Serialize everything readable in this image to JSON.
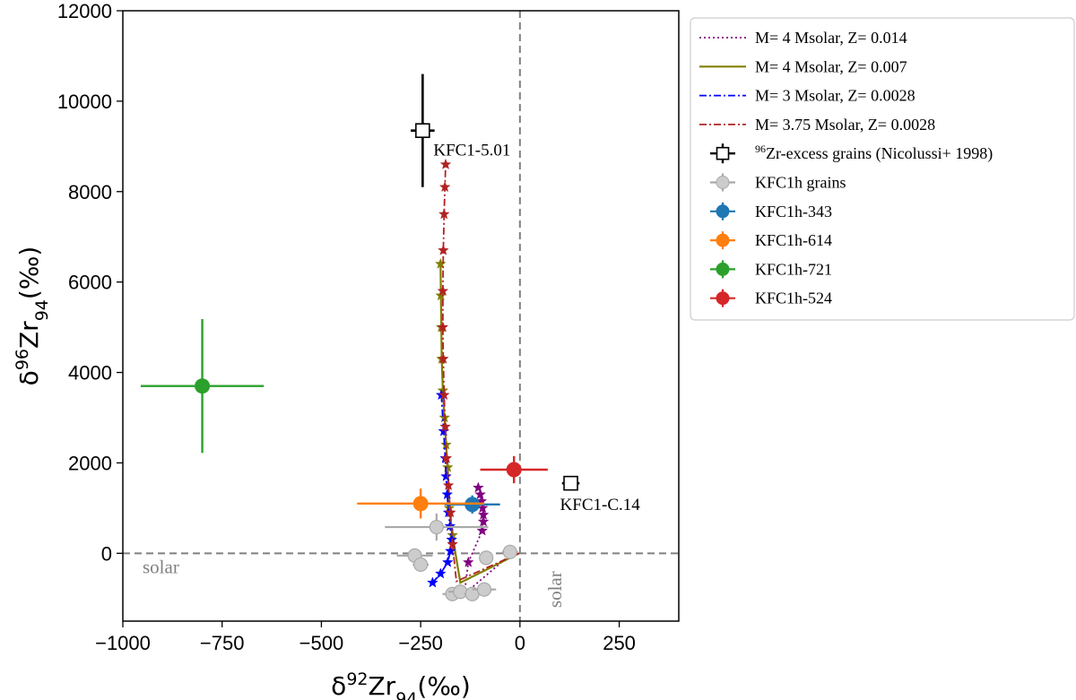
{
  "chart_data": {
    "type": "scatter",
    "xlabel": {
      "prefix": "δ",
      "sup": "92",
      "main": "Zr",
      "sub": "94",
      "suffix": "(‰)"
    },
    "ylabel": {
      "prefix": "δ",
      "sup": "96",
      "main": "Zr",
      "sub": "94",
      "suffix": "(‰)"
    },
    "xlim": [
      -1000,
      400
    ],
    "ylim": [
      -1500,
      12000
    ],
    "xticks": [
      -1000,
      -750,
      -500,
      -250,
      0,
      250
    ],
    "xtick_labels": [
      "−1000",
      "−750",
      "−500",
      "−250",
      "0",
      "250"
    ],
    "yticks": [
      0,
      2000,
      4000,
      6000,
      8000,
      10000,
      12000
    ],
    "ytick_labels": [
      "0",
      "2000",
      "4000",
      "6000",
      "8000",
      "10000",
      "12000"
    ],
    "grid": false,
    "legend_position": "outside-right",
    "reference_lines": [
      {
        "axis": "y",
        "value": 0,
        "style": "dashed",
        "label": "solar"
      },
      {
        "axis": "x",
        "value": 0,
        "style": "dashed",
        "label": "solar"
      }
    ],
    "model_series": [
      {
        "name": "M= 4 Msolar, Z= 0.014",
        "color": "#800080",
        "dash": "2,3",
        "marker": "star",
        "points": [
          [
            -20,
            0
          ],
          [
            -140,
            -900
          ],
          [
            -130,
            -200
          ],
          [
            -95,
            500
          ],
          [
            -92,
            700
          ],
          [
            -92,
            850
          ],
          [
            -94,
            1000
          ],
          [
            -97,
            1150
          ],
          [
            -100,
            1300
          ],
          [
            -105,
            1450
          ]
        ],
        "marker_start": 2
      },
      {
        "name": "M= 4 Msolar, Z= 0.007",
        "color": "#808000",
        "dash": "",
        "marker": "star",
        "points": [
          [
            -2,
            0
          ],
          [
            -150,
            -650
          ],
          [
            -170,
            400
          ],
          [
            -178,
            1000
          ],
          [
            -182,
            1900
          ],
          [
            -186,
            2400
          ],
          [
            -190,
            3000
          ],
          [
            -194,
            3600
          ],
          [
            -197,
            4300
          ],
          [
            -198,
            5000
          ],
          [
            -199,
            5700
          ],
          [
            -200,
            6400
          ]
        ],
        "marker_start": 2
      },
      {
        "name": "M= 3 Msolar, Z= 0.0028",
        "color": "#0000ff",
        "dash": "8,3,2,3",
        "marker": "star",
        "points": [
          [
            -220,
            -650
          ],
          [
            -200,
            -450
          ],
          [
            -182,
            -200
          ],
          [
            -175,
            50
          ],
          [
            -172,
            300
          ],
          [
            -176,
            600
          ],
          [
            -180,
            900
          ],
          [
            -183,
            1300
          ],
          [
            -186,
            1700
          ],
          [
            -188,
            2100
          ],
          [
            -192,
            2700
          ],
          [
            -198,
            3500
          ]
        ],
        "marker_start": 0
      },
      {
        "name": "M= 3.75 Msolar, Z= 0.0028",
        "color": "#b22222",
        "dash": "8,3,2,3",
        "marker": "star",
        "points": [
          [
            -2,
            0
          ],
          [
            -160,
            -620
          ],
          [
            -170,
            200
          ],
          [
            -175,
            900
          ],
          [
            -180,
            1500
          ],
          [
            -185,
            2100
          ],
          [
            -188,
            2800
          ],
          [
            -191,
            3500
          ],
          [
            -193,
            4300
          ],
          [
            -194,
            5000
          ],
          [
            -194,
            5800
          ],
          [
            -193,
            6700
          ],
          [
            -191,
            7500
          ],
          [
            -189,
            8100
          ],
          [
            -187,
            8600
          ]
        ],
        "marker_start": 2
      }
    ],
    "nicolussi_grains": {
      "name": "Zr-excess grains (Nicolussi+ 1998)",
      "name_sup": "96",
      "points": [
        {
          "x": -245,
          "y": 9350,
          "xerr": 30,
          "yerr": 1250,
          "label": "KFC1-5.01"
        },
        {
          "x": 128,
          "y": 1550,
          "xerr": 22,
          "yerr": 130,
          "label": "KFC1-C.14"
        }
      ]
    },
    "kfc1h_grains": {
      "name": "KFC1h grains",
      "color": "#cccccc",
      "edge": "#a9a9a9",
      "points": [
        {
          "x": -210,
          "y": 580,
          "xerr": 130,
          "yerr": 300
        },
        {
          "x": -265,
          "y": -50,
          "xerr": 45,
          "yerr": 130
        },
        {
          "x": -250,
          "y": -250,
          "xerr": 20,
          "yerr": 120
        },
        {
          "x": -170,
          "y": -900,
          "xerr": 25,
          "yerr": 150
        },
        {
          "x": -150,
          "y": -850,
          "xerr": 30,
          "yerr": 150
        },
        {
          "x": -120,
          "y": -900,
          "xerr": 20,
          "yerr": 130
        },
        {
          "x": -90,
          "y": -800,
          "xerr": 30,
          "yerr": 100
        },
        {
          "x": -85,
          "y": -100,
          "xerr": 15,
          "yerr": 100
        },
        {
          "x": -25,
          "y": 30,
          "xerr": 20,
          "yerr": 100
        }
      ]
    },
    "highlighted_grains": [
      {
        "name": "KFC1h-343",
        "color": "#1f77b4",
        "x": -120,
        "y": 1080,
        "xerr": 70,
        "yerr": 200
      },
      {
        "name": "KFC1h-614",
        "color": "#ff7f0e",
        "x": -250,
        "y": 1100,
        "xerr": 160,
        "yerr": 330
      },
      {
        "name": "KFC1h-721",
        "color": "#2ca02c",
        "x": -800,
        "y": 3700,
        "xerr": 155,
        "yerr": 1480
      },
      {
        "name": "KFC1h-524",
        "color": "#d62728",
        "x": -15,
        "y": 1850,
        "xerr": 85,
        "yerr": 300
      }
    ]
  }
}
